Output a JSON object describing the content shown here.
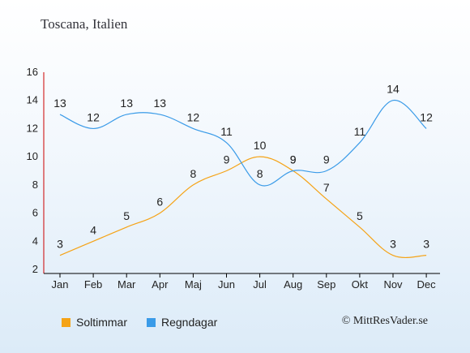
{
  "title": "Toscana, Italien",
  "copyright": "© MittResVader.se",
  "chart_data": {
    "type": "line",
    "categories": [
      "Jan",
      "Feb",
      "Mar",
      "Apr",
      "Maj",
      "Jun",
      "Jul",
      "Aug",
      "Sep",
      "Okt",
      "Nov",
      "Dec"
    ],
    "ylim": [
      2,
      16
    ],
    "yticks": [
      2,
      4,
      6,
      8,
      10,
      12,
      14,
      16
    ],
    "grid": false,
    "legend": "bottom-left",
    "series": [
      {
        "name": "Soltimmar",
        "color": "#f5a316",
        "values": [
          3,
          4,
          5,
          6,
          8,
          9,
          10,
          9,
          7,
          5,
          3,
          3
        ]
      },
      {
        "name": "Regndagar",
        "color": "#3a9be8",
        "values": [
          13,
          12,
          13,
          13,
          12,
          11,
          8,
          9,
          9,
          11,
          14,
          12
        ]
      }
    ]
  }
}
